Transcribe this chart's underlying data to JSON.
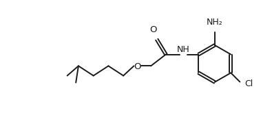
{
  "bg_color": "#ffffff",
  "line_color": "#1a1a1a",
  "text_color": "#1a1a1a",
  "line_width": 1.4,
  "font_size": 8.5,
  "fig_width": 3.95,
  "fig_height": 1.71,
  "dpi": 100,
  "xlim": [
    0,
    10.5
  ],
  "ylim": [
    0.2,
    4.5
  ]
}
